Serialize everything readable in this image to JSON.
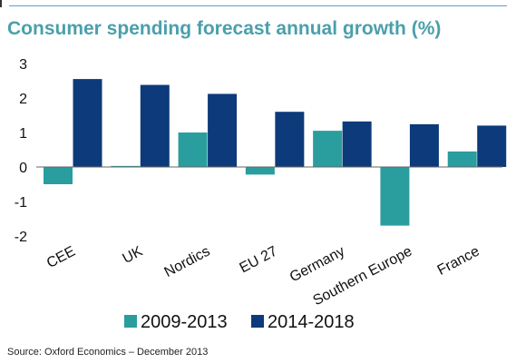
{
  "title": "Consumer spending forecast annual growth (%)",
  "source": "Source:  Oxford Economics – December 2013",
  "colors": {
    "series_2009_2013": "#2a9d9f",
    "series_2014_2018": "#0d3a7a",
    "title": "#4aa0ab"
  },
  "chart_data": {
    "type": "bar",
    "title": "Consumer spending forecast annual growth (%)",
    "categories": [
      "CEE",
      "UK",
      "Nordics",
      "EU 27",
      "Germany",
      "Southern Europe",
      "France"
    ],
    "series": [
      {
        "name": "2009-2013",
        "color": "#2a9d9f",
        "values": [
          -0.5,
          0.03,
          1.0,
          -0.22,
          1.05,
          -1.7,
          0.45
        ]
      },
      {
        "name": "2014-2018",
        "color": "#0d3a7a",
        "values": [
          2.55,
          2.38,
          2.12,
          1.6,
          1.32,
          1.24,
          1.2
        ]
      }
    ],
    "ylim": [
      -2,
      3
    ],
    "yticks": [
      3,
      2,
      1,
      0,
      -1,
      -2
    ],
    "xlabel": "",
    "ylabel": "",
    "grid": false,
    "legend": "bottom"
  }
}
